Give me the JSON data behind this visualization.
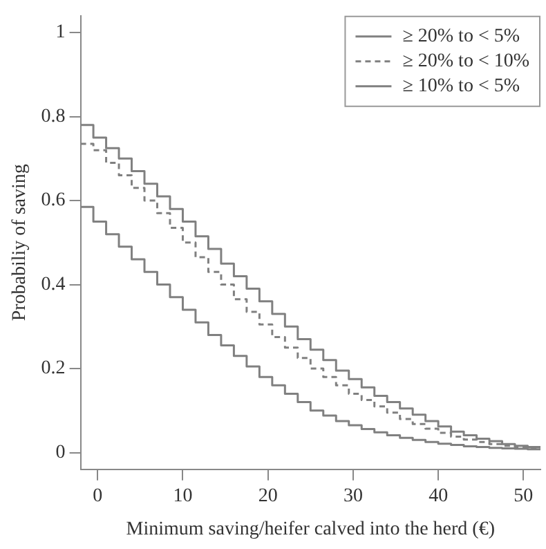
{
  "chart_data": {
    "type": "step",
    "xlabel": "Minimum saving/heifer calved into the herd (€)",
    "ylabel": "Probabiliy of saving",
    "x": [
      -2,
      -0.5,
      1,
      2.5,
      4,
      5.5,
      7,
      8.5,
      10,
      11.5,
      13,
      14.5,
      16,
      17.5,
      19,
      20.5,
      22,
      23.5,
      25,
      26.5,
      28,
      29.5,
      31,
      32.5,
      34,
      35.5,
      37,
      38.5,
      40,
      41.5,
      43,
      44.5,
      46,
      47.5,
      49,
      50.5,
      52
    ],
    "series": [
      {
        "name": "≥ 20% to < 5%",
        "color": "#808080",
        "line_style": "solid",
        "values": [
          0.78,
          0.75,
          0.725,
          0.7,
          0.67,
          0.64,
          0.61,
          0.58,
          0.55,
          0.515,
          0.485,
          0.45,
          0.42,
          0.39,
          0.36,
          0.33,
          0.3,
          0.27,
          0.245,
          0.22,
          0.195,
          0.175,
          0.155,
          0.135,
          0.12,
          0.105,
          0.09,
          0.075,
          0.062,
          0.05,
          0.041,
          0.033,
          0.027,
          0.02,
          0.016,
          0.013,
          0.01
        ]
      },
      {
        "name": "≥ 20% to < 10%",
        "color": "#808080",
        "line_style": "dashed",
        "values": [
          0.735,
          0.72,
          0.69,
          0.66,
          0.63,
          0.6,
          0.57,
          0.535,
          0.5,
          0.465,
          0.43,
          0.4,
          0.365,
          0.335,
          0.305,
          0.275,
          0.25,
          0.225,
          0.2,
          0.18,
          0.16,
          0.14,
          0.125,
          0.11,
          0.095,
          0.08,
          0.068,
          0.057,
          0.047,
          0.038,
          0.031,
          0.025,
          0.02,
          0.016,
          0.013,
          0.01,
          0.008
        ]
      },
      {
        "name": "≥ 10% to < 5%",
        "color": "#808080",
        "line_style": "solid",
        "values": [
          0.585,
          0.55,
          0.52,
          0.49,
          0.46,
          0.43,
          0.4,
          0.37,
          0.34,
          0.31,
          0.28,
          0.255,
          0.23,
          0.205,
          0.18,
          0.16,
          0.14,
          0.12,
          0.1,
          0.088,
          0.075,
          0.065,
          0.056,
          0.048,
          0.041,
          0.035,
          0.03,
          0.025,
          0.021,
          0.018,
          0.015,
          0.013,
          0.011,
          0.01,
          0.009,
          0.008,
          0.007
        ]
      }
    ],
    "xlim": [
      -2,
      52
    ],
    "xticks": [
      0,
      10,
      20,
      30,
      40,
      50
    ],
    "ylim": [
      -0.04,
      1.04
    ],
    "yticks": [
      0,
      {
        "value": 0.2,
        "label": "0.2"
      },
      {
        "value": 0.4,
        "label": "0.4"
      },
      {
        "value": 0.6,
        "label": "0.6"
      },
      {
        "value": 0.8,
        "label": "0.8"
      },
      1
    ],
    "grid": false,
    "legend": "top right",
    "marker": "none"
  }
}
